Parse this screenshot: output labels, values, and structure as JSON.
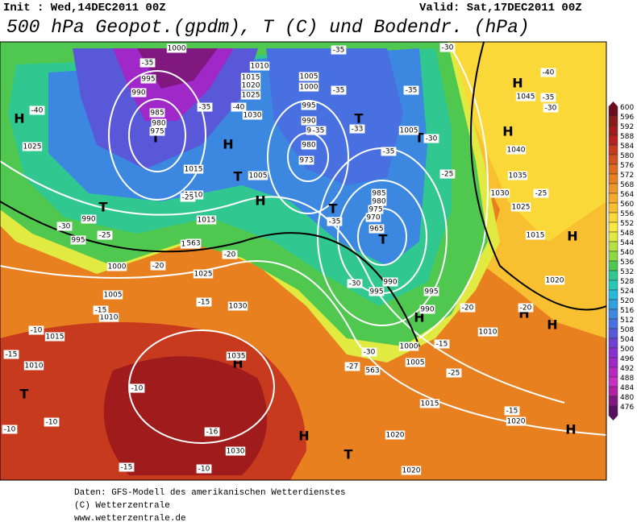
{
  "header": {
    "init": "Init : Wed,14DEC2011 00Z",
    "valid": "Valid: Sat,17DEC2011 00Z",
    "title": "500 hPa Geopot.(gpdm), T (C) und Bodendr. (hPa)"
  },
  "colorbar": {
    "ticks": [
      600,
      596,
      592,
      588,
      584,
      580,
      576,
      572,
      568,
      564,
      560,
      556,
      552,
      548,
      544,
      540,
      536,
      532,
      528,
      524,
      520,
      516,
      512,
      508,
      504,
      500,
      496,
      492,
      488,
      484,
      480,
      476
    ],
    "colors": [
      "#6e0a1e",
      "#8b1a1a",
      "#a01c1c",
      "#b82020",
      "#c83a1e",
      "#d4501e",
      "#e06a1e",
      "#e88020",
      "#f09628",
      "#f4aa28",
      "#f8c030",
      "#fad838",
      "#f8e840",
      "#e0ea40",
      "#b8e040",
      "#8cd840",
      "#50c850",
      "#30c890",
      "#28c8b8",
      "#28b8d8",
      "#30a0e0",
      "#3c88e0",
      "#4870e0",
      "#5858d8",
      "#7040d0",
      "#8830d0",
      "#a028c8",
      "#b828c0",
      "#c830c0",
      "#b020a0",
      "#801880",
      "#581060"
    ]
  },
  "map": {
    "labels": [
      "H",
      "T",
      "H",
      "T",
      "H",
      "T",
      "T",
      "T",
      "T",
      "H",
      "H",
      "H",
      "H",
      "H",
      "H",
      "T",
      "H",
      "T",
      "H",
      "T",
      "H",
      "1000",
      "995",
      "990",
      "985",
      "980",
      "975",
      "1025",
      "1015",
      "1010",
      "1015",
      "1020",
      "1025",
      "1030",
      "1035",
      "1030",
      "1010",
      "1015",
      "1020",
      "1025",
      "1030",
      "1005",
      "1005",
      "1000",
      "995",
      "990",
      "985",
      "980",
      "973",
      "985",
      "980",
      "975",
      "970",
      "965",
      "995",
      "990",
      "1005",
      "1040",
      "1035",
      "1030",
      "1025",
      "1045",
      "1015",
      "1020",
      "1010",
      "995",
      "990",
      "1000",
      "1005",
      "1015",
      "1020",
      "1020",
      "1020",
      "990",
      "995",
      "1000",
      "1005",
      "1010",
      "1015",
      "1010",
      "563",
      "563",
      "-35",
      "-40",
      "-35",
      "-40",
      "-35",
      "-35",
      "-35",
      "-33",
      "-35",
      "-30",
      "-25",
      "-35",
      "-30",
      "-30",
      "-27",
      "-25",
      "-20",
      "-20",
      "-25",
      "-30",
      "-35",
      "-40",
      "-25",
      "-30",
      "-25",
      "-20",
      "-20",
      "-15",
      "-10",
      "-15",
      "-15",
      "-10",
      "-10",
      "-10",
      "-15",
      "-10",
      "-15",
      "-16",
      "-15",
      "-30",
      "-35"
    ]
  },
  "footer": {
    "lines": [
      "Daten: GFS-Modell des amerikanischen Wetterdienstes",
      "(C) Wetterzentrale",
      "www.wetterzentrale.de"
    ]
  }
}
